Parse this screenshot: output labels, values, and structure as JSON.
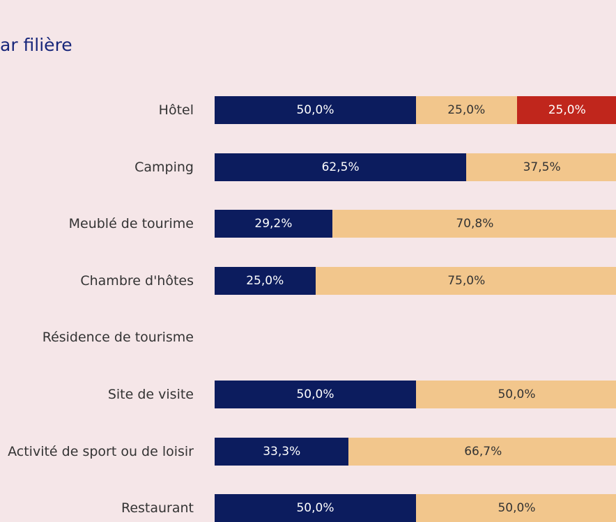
{
  "chart_data": {
    "type": "stacked-bar-horizontal",
    "title": "ar filière",
    "categories": [
      "Hôtel",
      "Camping",
      "Meublé de tourime",
      "Chambre d'hôtes",
      "Résidence de tourisme",
      "Site de visite",
      "Activité de sport ou de loisir",
      "Restaurant"
    ],
    "xlim": [
      0,
      100
    ],
    "series": [
      {
        "color": "#0c1c5e",
        "text_color": "#ffffff",
        "values": [
          50,
          62.5,
          29.2,
          25,
          null,
          50,
          33.3,
          50
        ],
        "value_labels": [
          "50,0%",
          "62,5%",
          "29,2%",
          "25,0%",
          null,
          "50,0%",
          "33,3%",
          "50,0%"
        ]
      },
      {
        "color": "#f2c68c",
        "text_color": "#333333",
        "values": [
          25,
          37.5,
          70.8,
          75,
          null,
          50,
          66.7,
          50
        ],
        "value_labels": [
          "25,0%",
          "37,5%",
          "70,8%",
          "75,0%",
          null,
          "50,0%",
          "66,7%",
          "50,0%"
        ]
      },
      {
        "color": "#c0261c",
        "text_color": "#ffffff",
        "values": [
          25,
          null,
          null,
          null,
          null,
          null,
          null,
          null
        ],
        "value_labels": [
          "25,0%",
          null,
          null,
          null,
          null,
          null,
          null,
          null
        ]
      }
    ]
  }
}
